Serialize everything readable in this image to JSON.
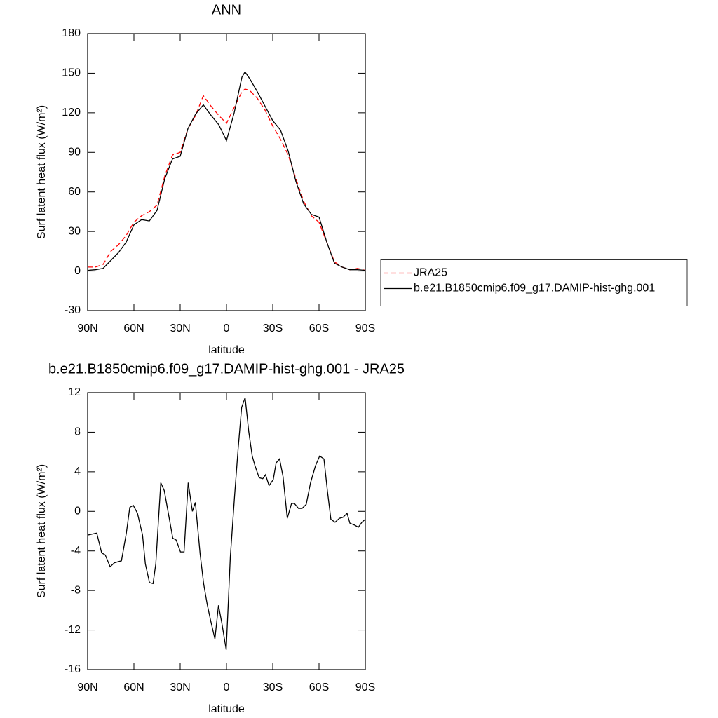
{
  "chart_data": [
    {
      "type": "line",
      "title": "ANN",
      "xlabel": "latitude",
      "ylabel": "Surf latent heat flux (W/m²)",
      "x": [
        90,
        85,
        80,
        75,
        70,
        65,
        60,
        55,
        50,
        45,
        40,
        35,
        30,
        25,
        20,
        15,
        10,
        5,
        0,
        -5,
        -10,
        -12,
        -15,
        -20,
        -25,
        -30,
        -35,
        -40,
        -45,
        -50,
        -55,
        -60,
        -65,
        -70,
        -75,
        -80,
        -85,
        -90
      ],
      "series": [
        {
          "name": "JRA25",
          "color": "#ff0000",
          "style": "dashed",
          "values": [
            3,
            3,
            5,
            15,
            20,
            27,
            37,
            42,
            45,
            50,
            72,
            88,
            90,
            108,
            118,
            133,
            125,
            118,
            112,
            124,
            136,
            138,
            137,
            131,
            122,
            110,
            100,
            88,
            70,
            53,
            42,
            37,
            22,
            7,
            3,
            1,
            2,
            0.5
          ]
        },
        {
          "name": "b.e21.B1850cmip6.f09_g17.DAMIP-hist-ghg.001",
          "color": "#000000",
          "style": "solid",
          "values": [
            0.5,
            1,
            2,
            8,
            14,
            22,
            35,
            39,
            38,
            46,
            70,
            85,
            87,
            108,
            119,
            126,
            118,
            111,
            99,
            120,
            147,
            151,
            146,
            136,
            125,
            114,
            107,
            91,
            68,
            51,
            43,
            41,
            22,
            6,
            3,
            1,
            1,
            0.5
          ]
        }
      ],
      "xlim": [
        90,
        -90
      ],
      "xticks": [
        {
          "value": 90,
          "label": "90N"
        },
        {
          "value": 60,
          "label": "60N"
        },
        {
          "value": 30,
          "label": "30N"
        },
        0,
        {
          "value": -30,
          "label": "30S"
        },
        {
          "value": -60,
          "label": "60S"
        },
        {
          "value": -90,
          "label": "90S"
        }
      ],
      "ylim": [
        -30,
        180
      ],
      "yticks": [
        -30,
        0,
        30,
        60,
        90,
        120,
        150,
        180
      ],
      "legend": "right"
    },
    {
      "type": "line",
      "title": "b.e21.B1850cmip6.f09_g17.DAMIP-hist-ghg.001 - JRA25",
      "xlabel": "latitude",
      "ylabel": "Surf latent heat flux (W/m²)",
      "x": [
        90,
        84.1,
        80.9,
        78.6,
        75.4,
        72.7,
        68.1,
        64.9,
        62.7,
        60.4,
        57.7,
        54.4,
        52.6,
        49.9,
        47.6,
        45.8,
        42.6,
        40.3,
        37.1,
        34.8,
        32.6,
        29.8,
        27.5,
        24.8,
        22.1,
        20.2,
        17.1,
        14.8,
        12.5,
        10.3,
        7.5,
        5.2,
        3.0,
        0.2,
        -2.5,
        -5.3,
        -7.6,
        -9.8,
        -12.1,
        -14.4,
        -16.7,
        -18.5,
        -21.2,
        -23.5,
        -25.3,
        -27.6,
        -30.3,
        -32.2,
        -34.4,
        -36.7,
        -39.4,
        -42.2,
        -44.0,
        -46.7,
        -49.0,
        -51.7,
        -54.5,
        -57.7,
        -60.4,
        -63.2,
        -65.4,
        -67.7,
        -70.4,
        -73.2,
        -75.5,
        -78.2,
        -80.0,
        -83.2,
        -85.5,
        -87.8,
        -90
      ],
      "series": [
        {
          "color": "#000000",
          "style": "solid",
          "values": [
            -2.4,
            -2.2,
            -4.2,
            -4.4,
            -5.6,
            -5.2,
            -5.0,
            -2.2,
            0.4,
            0.6,
            -0.2,
            -2.4,
            -5.3,
            -7.2,
            -7.3,
            -5.3,
            2.9,
            2.1,
            -0.7,
            -2.7,
            -2.9,
            -4.1,
            -4.1,
            2.9,
            0.0,
            0.9,
            -4.3,
            -7.3,
            -9.4,
            -11.0,
            -12.9,
            -9.5,
            -11.3,
            -14.0,
            -4.6,
            1.7,
            6.4,
            10.5,
            11.5,
            8.1,
            5.6,
            4.6,
            3.4,
            3.3,
            3.7,
            2.6,
            3.2,
            4.9,
            5.3,
            3.5,
            -0.7,
            0.8,
            0.8,
            0.3,
            0.3,
            0.7,
            2.9,
            4.6,
            5.6,
            5.3,
            2.1,
            -0.8,
            -1.1,
            -0.7,
            -0.6,
            -0.2,
            -1.2,
            -1.4,
            -1.6,
            -1.1,
            -0.8
          ]
        }
      ],
      "xlim": [
        90,
        -90
      ],
      "xticks": [
        {
          "value": 90,
          "label": "90N"
        },
        {
          "value": 60,
          "label": "60N"
        },
        {
          "value": 30,
          "label": "30N"
        },
        0,
        {
          "value": -30,
          "label": "30S"
        },
        {
          "value": -60,
          "label": "60S"
        },
        {
          "value": -90,
          "label": "90S"
        }
      ],
      "ylim": [
        -16,
        12
      ],
      "yticks": [
        -16,
        -12,
        -8,
        -4,
        0,
        4,
        8,
        12
      ]
    }
  ]
}
